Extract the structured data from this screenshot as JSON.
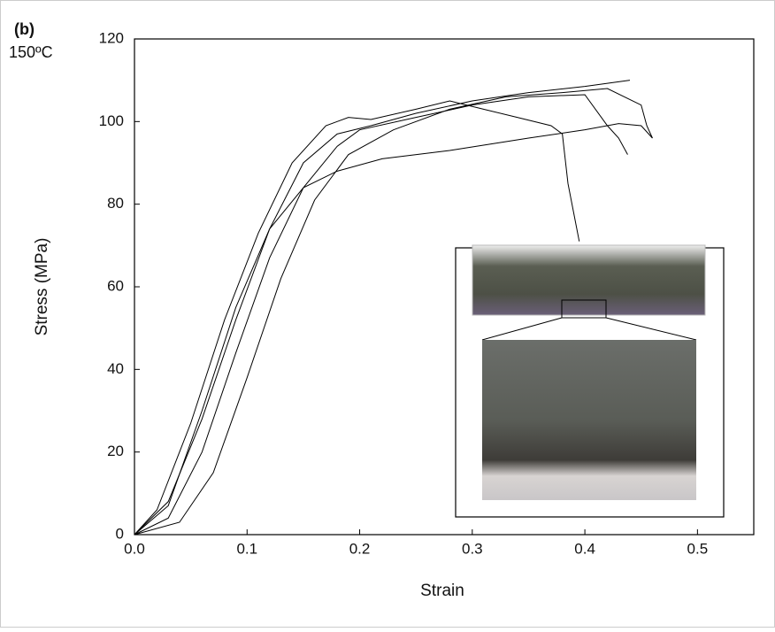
{
  "chart_data": {
    "type": "line",
    "annotations": [
      "(b)",
      "150ºC"
    ],
    "x_label": "Strain",
    "y_label": "Stress (MPa)",
    "xlim": [
      0,
      0.55
    ],
    "ylim": [
      0,
      120
    ],
    "xticks": [
      {
        "value": 0,
        "label": "0.0"
      },
      0.1,
      0.2,
      0.3,
      0.4,
      0.5
    ],
    "yticks": [
      0,
      20,
      40,
      60,
      80,
      100,
      120
    ],
    "series": [
      {
        "color": "#000000",
        "x": [
          0,
          0.02,
          0.05,
          0.08,
          0.11,
          0.14,
          0.17,
          0.19,
          0.21,
          0.25,
          0.28,
          0.31,
          0.34,
          0.37,
          0.38,
          0.385,
          0.39,
          0.395
        ],
        "values": [
          0,
          6,
          27,
          52,
          73,
          90,
          99,
          101,
          100.5,
          103,
          105,
          103,
          101,
          99,
          97,
          85,
          78,
          71
        ]
      },
      {
        "color": "#000000",
        "x": [
          0,
          0.03,
          0.06,
          0.09,
          0.12,
          0.15,
          0.18,
          0.21,
          0.25,
          0.3,
          0.35,
          0.4,
          0.44
        ],
        "values": [
          0,
          8,
          28,
          52,
          74,
          90,
          97,
          99,
          102,
          105,
          107,
          108.5,
          110
        ]
      },
      {
        "color": "#000000",
        "x": [
          0,
          0.03,
          0.06,
          0.09,
          0.12,
          0.15,
          0.18,
          0.2,
          0.25,
          0.3,
          0.35,
          0.4,
          0.42,
          0.43,
          0.438
        ],
        "values": [
          0,
          4,
          20,
          44,
          67,
          84,
          94,
          98,
          101,
          104,
          106,
          106.5,
          99,
          96,
          92
        ]
      },
      {
        "color": "#000000",
        "x": [
          0,
          0.03,
          0.06,
          0.09,
          0.12,
          0.15,
          0.18,
          0.22,
          0.28,
          0.35,
          0.4,
          0.43,
          0.45,
          0.46
        ],
        "values": [
          0,
          7,
          30,
          55,
          74,
          84,
          88,
          91,
          93,
          96,
          98,
          99.5,
          99,
          96
        ]
      },
      {
        "color": "#000000",
        "x": [
          0,
          0.04,
          0.07,
          0.1,
          0.13,
          0.16,
          0.19,
          0.23,
          0.28,
          0.33,
          0.38,
          0.42,
          0.45,
          0.455,
          0.46
        ],
        "values": [
          0,
          3,
          15,
          38,
          62,
          81,
          92,
          98,
          103,
          106,
          107,
          108,
          104,
          99,
          96
        ]
      }
    ]
  }
}
